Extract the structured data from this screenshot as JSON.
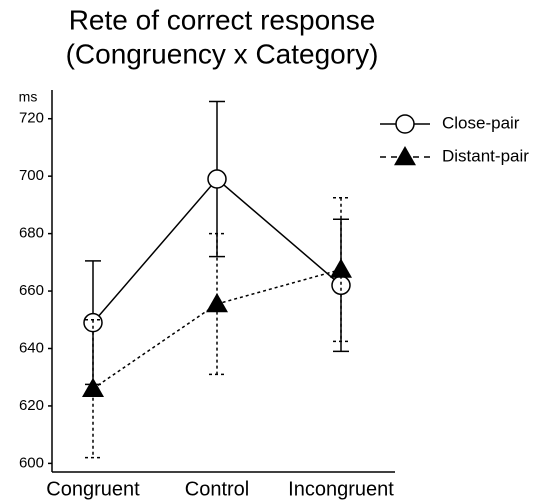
{
  "chart_data": {
    "type": "line",
    "title": [
      "Rete of correct response",
      "(Congruency x Category)"
    ],
    "y_label": "ms",
    "categories": [
      "Congruent",
      "Control",
      "Incongruent"
    ],
    "series": [
      {
        "name": "Close-pair",
        "color": "#000000",
        "dash": "solid",
        "marker": "circle",
        "values": [
          649,
          699,
          662
        ],
        "errors": [
          21.5,
          27,
          23
        ]
      },
      {
        "name": "Distant-pair",
        "color": "#000000",
        "dash": "dashed",
        "marker": "triangle",
        "values": [
          626,
          655.5,
          667.5
        ],
        "errors": [
          24,
          24.5,
          25
        ]
      }
    ],
    "ylim": [
      597,
      730
    ],
    "yticks": [
      600,
      620,
      640,
      660,
      680,
      700,
      720
    ],
    "grid": false,
    "legend": "top-right"
  }
}
